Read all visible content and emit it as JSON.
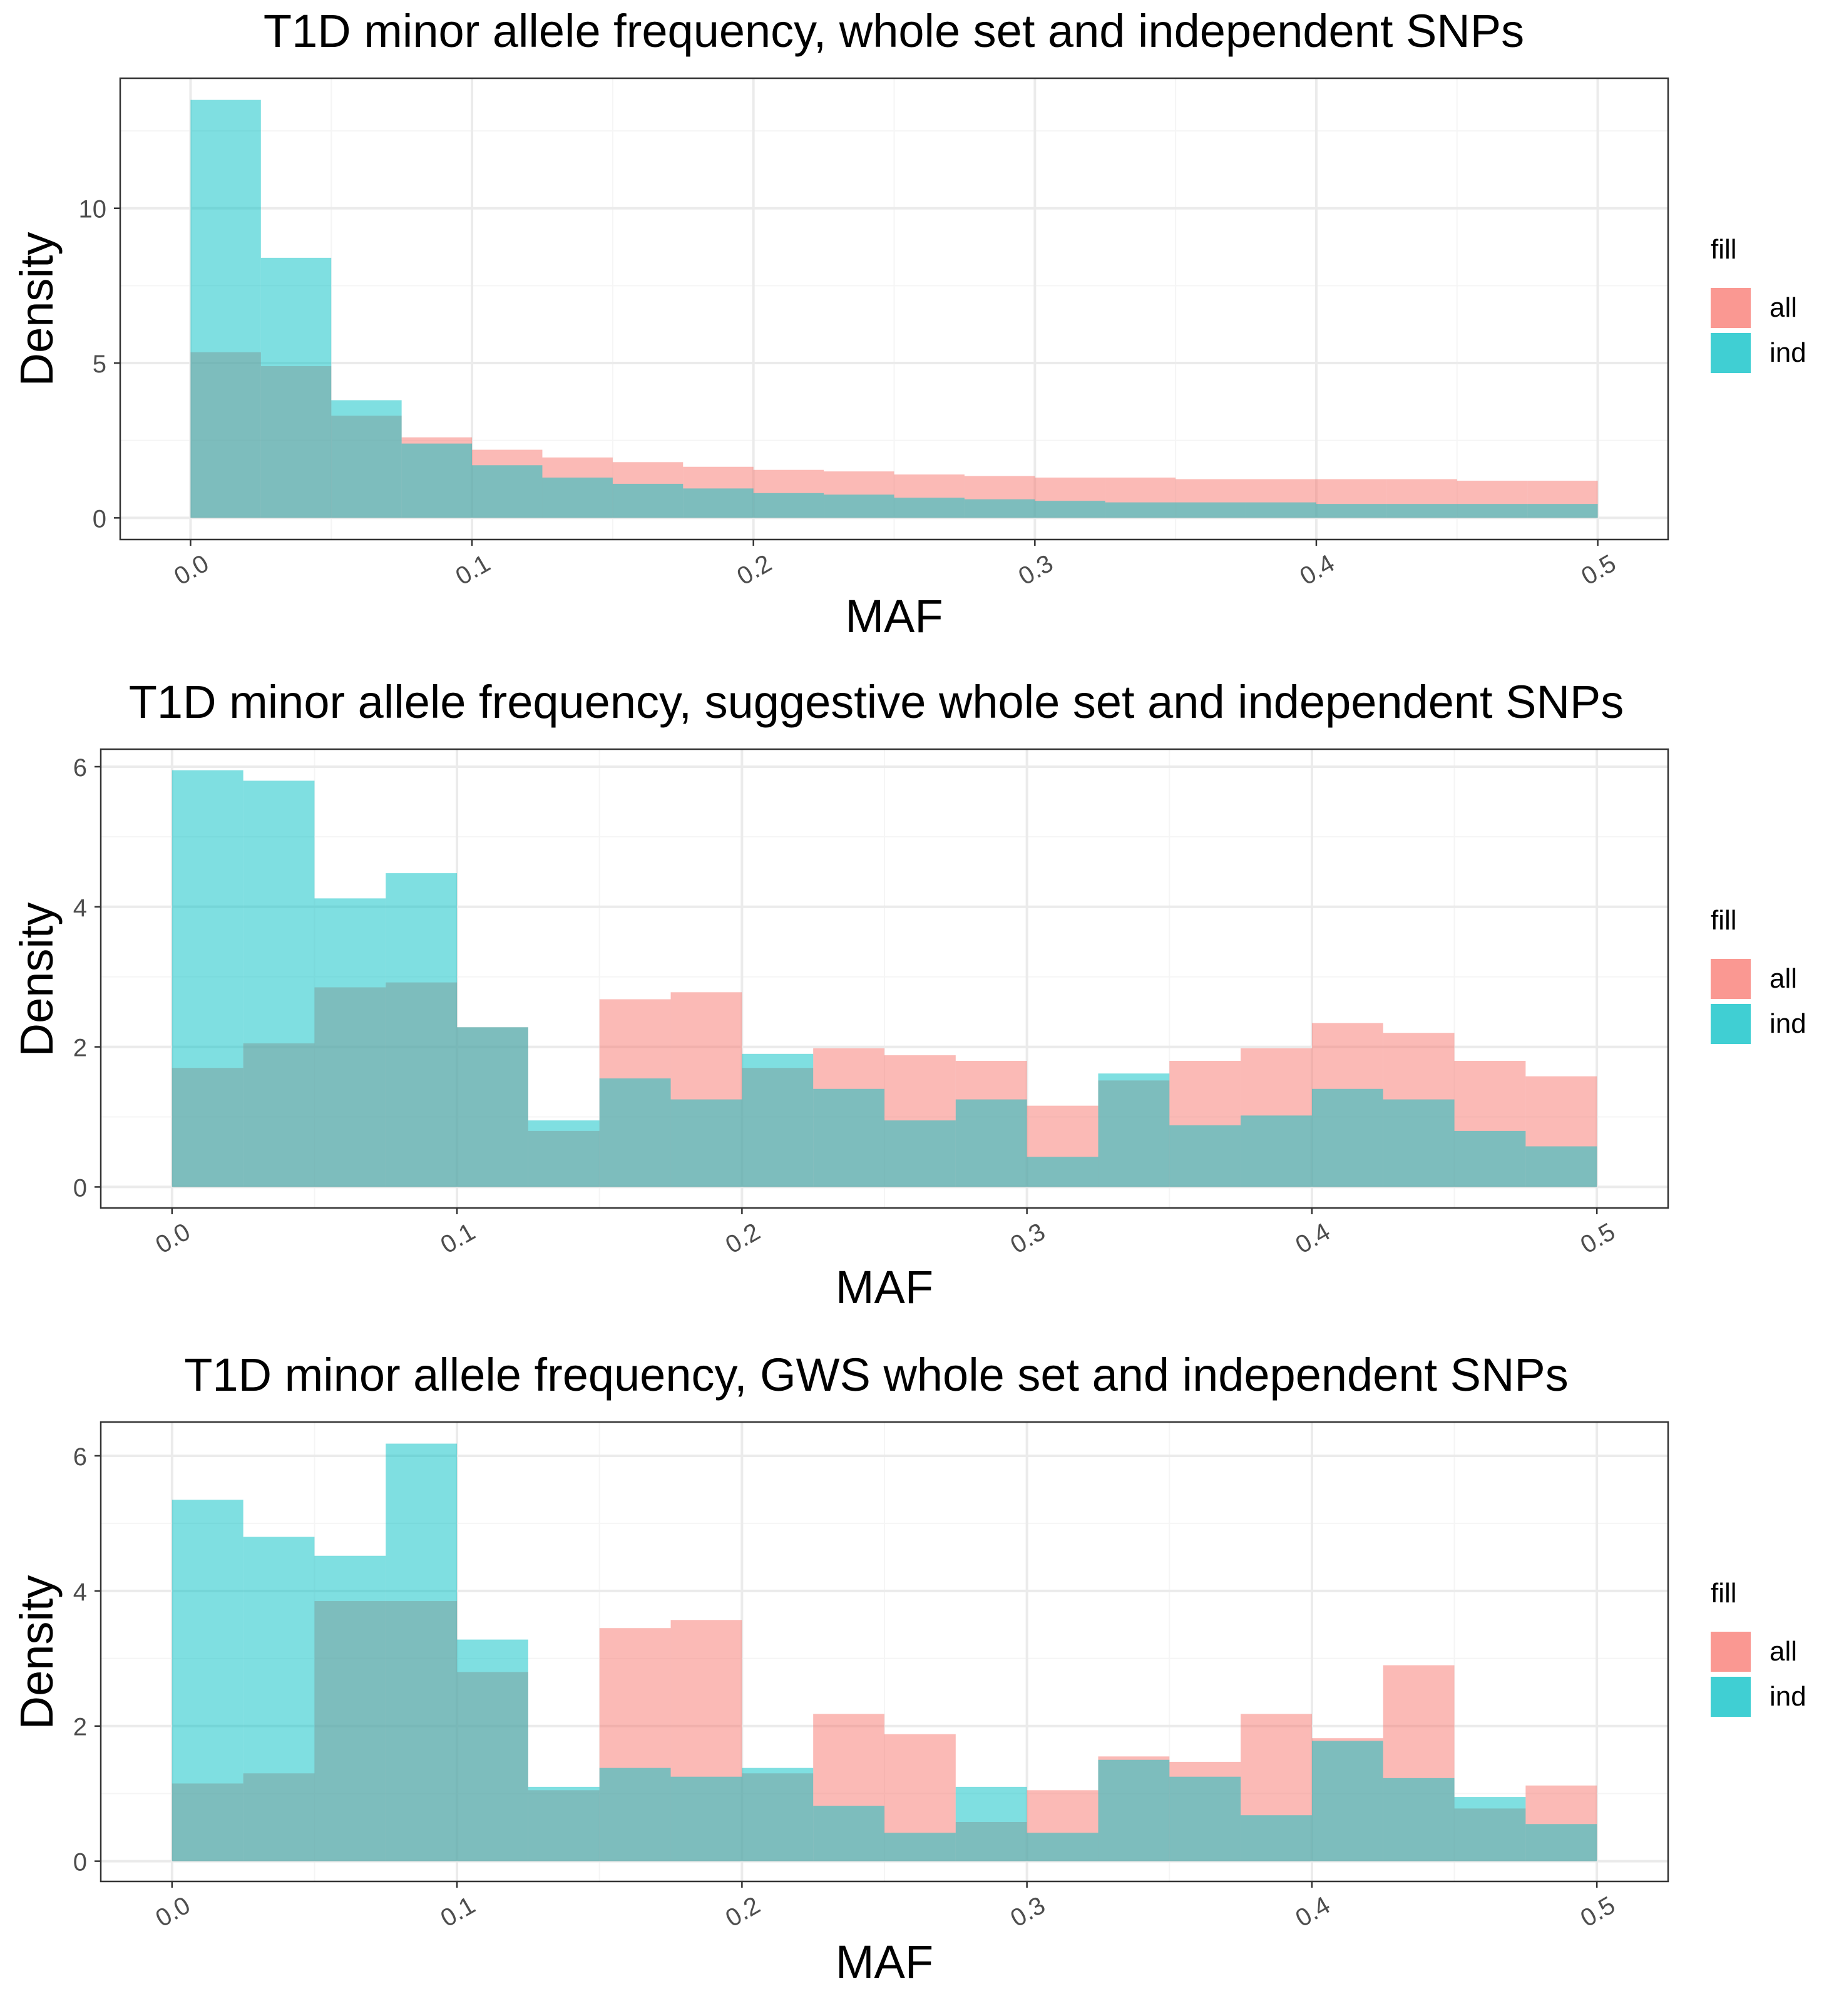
{
  "chart_data": [
    {
      "type": "bar",
      "title": "T1D minor allele frequency, whole set and independent SNPs",
      "xlabel": "MAF",
      "ylabel": "Density",
      "xlim": [
        -0.025,
        0.525
      ],
      "ylim": [
        -0.7,
        14.2
      ],
      "xticks": [
        "0.0",
        "0.1",
        "0.2",
        "0.3",
        "0.4",
        "0.5"
      ],
      "yticks": [
        0,
        5,
        10
      ],
      "bin_edges": [
        0.0,
        0.025,
        0.05,
        0.075,
        0.1,
        0.125,
        0.15,
        0.175,
        0.2,
        0.225,
        0.25,
        0.275,
        0.3,
        0.325,
        0.35,
        0.375,
        0.4,
        0.425,
        0.45,
        0.475,
        0.5
      ],
      "series": [
        {
          "name": "all",
          "values": [
            5.35,
            4.9,
            3.3,
            2.6,
            2.2,
            1.95,
            1.8,
            1.65,
            1.55,
            1.5,
            1.4,
            1.35,
            1.3,
            1.3,
            1.25,
            1.25,
            1.25,
            1.25,
            1.2,
            1.2
          ]
        },
        {
          "name": "ind",
          "values": [
            13.5,
            8.4,
            3.8,
            2.4,
            1.7,
            1.3,
            1.1,
            0.95,
            0.8,
            0.75,
            0.65,
            0.6,
            0.55,
            0.5,
            0.5,
            0.5,
            0.45,
            0.45,
            0.45,
            0.45
          ]
        }
      ],
      "legend_title": "fill",
      "legend_position": "right",
      "grid": true
    },
    {
      "type": "bar",
      "title": "T1D minor allele frequency, suggestive whole set and independent SNPs",
      "xlabel": "MAF",
      "ylabel": "Density",
      "xlim": [
        -0.025,
        0.525
      ],
      "ylim": [
        -0.3,
        6.25
      ],
      "xticks": [
        "0.0",
        "0.1",
        "0.2",
        "0.3",
        "0.4",
        "0.5"
      ],
      "yticks": [
        0,
        2,
        4,
        6
      ],
      "bin_edges": [
        0.0,
        0.025,
        0.05,
        0.075,
        0.1,
        0.125,
        0.15,
        0.175,
        0.2,
        0.225,
        0.25,
        0.275,
        0.3,
        0.325,
        0.35,
        0.375,
        0.4,
        0.425,
        0.45,
        0.475,
        0.5
      ],
      "series": [
        {
          "name": "all",
          "values": [
            1.7,
            2.05,
            2.85,
            2.92,
            2.28,
            0.8,
            2.68,
            2.78,
            1.7,
            1.98,
            1.88,
            1.8,
            1.16,
            1.52,
            1.8,
            1.98,
            2.34,
            2.2,
            1.8,
            1.58
          ]
        },
        {
          "name": "ind",
          "values": [
            5.95,
            5.8,
            4.12,
            4.48,
            2.28,
            0.95,
            1.55,
            1.25,
            1.9,
            1.4,
            0.95,
            1.25,
            0.43,
            1.62,
            0.88,
            1.02,
            1.4,
            1.25,
            0.8,
            0.58
          ]
        }
      ],
      "legend_title": "fill",
      "legend_position": "right",
      "grid": true
    },
    {
      "type": "bar",
      "title": "T1D minor allele frequency, GWS whole set and independent SNPs",
      "xlabel": "MAF",
      "ylabel": "Density",
      "xlim": [
        -0.025,
        0.525
      ],
      "ylim": [
        -0.3,
        6.5
      ],
      "xticks": [
        "0.0",
        "0.1",
        "0.2",
        "0.3",
        "0.4",
        "0.5"
      ],
      "yticks": [
        0,
        2,
        4,
        6
      ],
      "bin_edges": [
        0.0,
        0.025,
        0.05,
        0.075,
        0.1,
        0.125,
        0.15,
        0.175,
        0.2,
        0.225,
        0.25,
        0.275,
        0.3,
        0.325,
        0.35,
        0.375,
        0.4,
        0.425,
        0.45,
        0.475,
        0.5
      ],
      "series": [
        {
          "name": "all",
          "values": [
            1.15,
            1.3,
            3.85,
            3.85,
            2.8,
            1.05,
            3.45,
            3.57,
            1.3,
            2.18,
            1.88,
            0.58,
            1.05,
            1.55,
            1.47,
            2.18,
            1.82,
            2.9,
            0.78,
            1.12
          ]
        },
        {
          "name": "ind",
          "values": [
            5.35,
            4.8,
            4.52,
            6.18,
            3.28,
            1.1,
            1.38,
            1.25,
            1.38,
            0.82,
            0.42,
            1.1,
            0.42,
            1.5,
            1.25,
            0.68,
            1.78,
            1.23,
            0.95,
            0.55
          ]
        }
      ],
      "legend_title": "fill",
      "legend_position": "right",
      "grid": true
    }
  ],
  "colors": {
    "all": "#F8766D",
    "ind": "#00BFC4",
    "overlap_hint": "#B7A9A6",
    "grid_major": "#EBEBEB",
    "grid_minor": "#F5F5F5",
    "panel_border": "#333333",
    "text": "#000000",
    "tick_text": "#4D4D4D"
  }
}
